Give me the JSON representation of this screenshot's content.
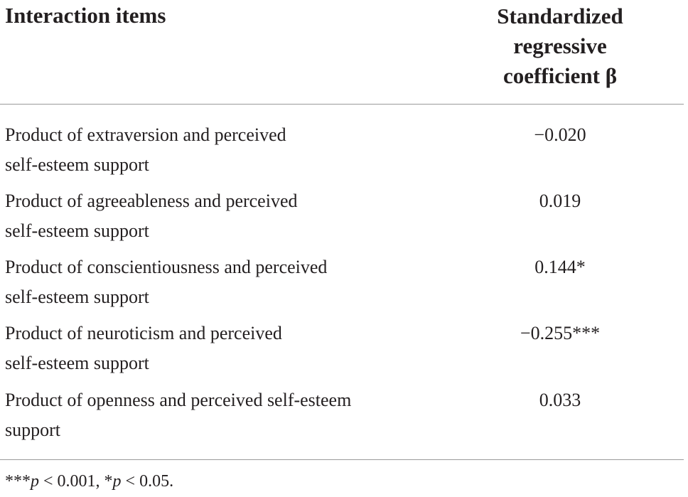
{
  "table": {
    "header": {
      "col_items": "Interaction items",
      "col_coef_lines": [
        "Standardized",
        "regressive",
        "coefficient β"
      ]
    },
    "rows": [
      {
        "label_lines": [
          "Product of extraversion and perceived",
          "self-esteem support"
        ],
        "value": "−0.020"
      },
      {
        "label_lines": [
          "Product of agreeableness and perceived",
          "self-esteem support"
        ],
        "value": "0.019"
      },
      {
        "label_lines": [
          "Product of conscientiousness and perceived",
          "self-esteem support"
        ],
        "value": "0.144*"
      },
      {
        "label_lines": [
          "Product of neuroticism and perceived",
          "self-esteem support"
        ],
        "value": "−0.255***"
      },
      {
        "label_lines": [
          "Product of openness and perceived self-esteem",
          "support"
        ],
        "value": "0.033"
      }
    ],
    "footnote": {
      "part1_marks": "***",
      "part1_var": "p",
      "part1_rest": " < 0.001, ",
      "part2_marks": "*",
      "part2_var": "p",
      "part2_rest": " < 0.05."
    }
  }
}
